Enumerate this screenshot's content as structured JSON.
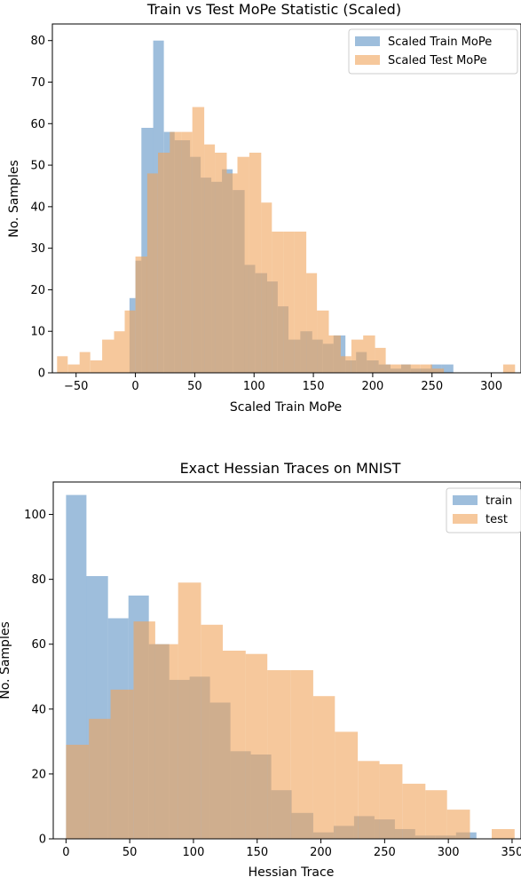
{
  "chart_data": [
    {
      "type": "histogram",
      "title": "Train vs Test MoPe Statistic (Scaled)",
      "xlabel": "Scaled Train MoPe",
      "ylabel": "No. Samples",
      "xlim": [
        -70,
        325
      ],
      "ylim": [
        0,
        84
      ],
      "xticks": [
        -50,
        0,
        50,
        100,
        150,
        200,
        250,
        300
      ],
      "yticks": [
        0,
        10,
        20,
        30,
        40,
        50,
        60,
        70,
        80
      ],
      "xtick_labels": [
        "−50",
        "0",
        "50",
        "100",
        "150",
        "200",
        "250",
        "300"
      ],
      "ytick_labels": [
        "0",
        "10",
        "20",
        "30",
        "40",
        "50",
        "60",
        "70",
        "80"
      ],
      "legend_position": "top-right",
      "series": [
        {
          "name": "Scaled Train MoPe",
          "color": "#4f88c0",
          "opacity": 0.55,
          "bins": [
            [
              -5,
              0,
              18
            ],
            [
              0,
              5,
              27
            ],
            [
              5,
              15,
              59
            ],
            [
              15,
              24,
              80
            ],
            [
              24,
              33,
              58
            ],
            [
              33,
              46,
              56
            ],
            [
              46,
              55,
              52
            ],
            [
              55,
              64,
              47
            ],
            [
              64,
              73,
              46
            ],
            [
              73,
              82,
              49
            ],
            [
              82,
              92,
              44
            ],
            [
              92,
              101,
              26
            ],
            [
              101,
              111,
              24
            ],
            [
              111,
              120,
              22
            ],
            [
              120,
              129,
              16
            ],
            [
              129,
              139,
              8
            ],
            [
              139,
              149,
              10
            ],
            [
              149,
              158,
              8
            ],
            [
              158,
              167,
              7
            ],
            [
              167,
              177,
              9
            ],
            [
              177,
              186,
              3
            ],
            [
              186,
              195,
              5
            ],
            [
              195,
              205,
              3
            ],
            [
              205,
              215,
              2
            ],
            [
              215,
              224,
              1
            ],
            [
              224,
              232,
              2
            ],
            [
              232,
              242,
              1
            ],
            [
              242,
              249,
              1
            ],
            [
              249,
              258,
              2
            ],
            [
              258,
              268,
              2
            ]
          ]
        },
        {
          "name": "Scaled Test MoPe",
          "color": "#f0a35a",
          "opacity": 0.6,
          "bins": [
            [
              -66,
              -57,
              4
            ],
            [
              -57,
              -47,
              2
            ],
            [
              -47,
              -38,
              5
            ],
            [
              -38,
              -28,
              3
            ],
            [
              -28,
              -18,
              8
            ],
            [
              -18,
              -9,
              10
            ],
            [
              -9,
              0,
              15
            ],
            [
              0,
              10,
              28
            ],
            [
              10,
              19,
              48
            ],
            [
              19,
              29,
              53
            ],
            [
              29,
              39,
              58
            ],
            [
              39,
              48,
              58
            ],
            [
              48,
              58,
              64
            ],
            [
              58,
              67,
              55
            ],
            [
              67,
              77,
              53
            ],
            [
              77,
              86,
              48
            ],
            [
              86,
              96,
              52
            ],
            [
              96,
              106,
              53
            ],
            [
              106,
              115,
              41
            ],
            [
              115,
              125,
              34
            ],
            [
              125,
              134,
              34
            ],
            [
              134,
              144,
              34
            ],
            [
              144,
              153,
              24
            ],
            [
              153,
              163,
              15
            ],
            [
              163,
              173,
              9
            ],
            [
              173,
              182,
              4
            ],
            [
              182,
              192,
              8
            ],
            [
              192,
              202,
              9
            ],
            [
              202,
              211,
              6
            ],
            [
              211,
              221,
              2
            ],
            [
              221,
              231,
              2
            ],
            [
              231,
              240,
              2
            ],
            [
              240,
              250,
              2
            ],
            [
              250,
              260,
              1
            ],
            [
              300,
              310,
              0
            ],
            [
              310,
              320,
              2
            ]
          ]
        }
      ]
    },
    {
      "type": "histogram",
      "title": "Exact Hessian Traces on MNIST",
      "xlabel": "Hessian Trace",
      "ylabel": "No. Samples",
      "xlim": [
        -10,
        357
      ],
      "ylim": [
        0,
        110
      ],
      "xticks": [
        0,
        50,
        100,
        150,
        200,
        250,
        300,
        350
      ],
      "yticks": [
        0,
        20,
        40,
        60,
        80,
        100
      ],
      "xtick_labels": [
        "0",
        "50",
        "100",
        "150",
        "200",
        "250",
        "300",
        "350"
      ],
      "ytick_labels": [
        "0",
        "20",
        "40",
        "60",
        "80",
        "100"
      ],
      "legend_position": "top-right",
      "series": [
        {
          "name": "train",
          "color": "#4f88c0",
          "opacity": 0.55,
          "bins": [
            [
              0,
              16,
              106
            ],
            [
              16,
              33,
              81
            ],
            [
              33,
              49,
              68
            ],
            [
              49,
              65,
              75
            ],
            [
              65,
              81,
              60
            ],
            [
              81,
              97,
              49
            ],
            [
              97,
              113,
              50
            ],
            [
              113,
              129,
              42
            ],
            [
              129,
              145,
              27
            ],
            [
              145,
              161,
              26
            ],
            [
              161,
              177,
              15
            ],
            [
              177,
              194,
              8
            ],
            [
              194,
              210,
              2
            ],
            [
              210,
              226,
              4
            ],
            [
              226,
              242,
              7
            ],
            [
              242,
              258,
              6
            ],
            [
              258,
              274,
              3
            ],
            [
              274,
              290,
              1
            ],
            [
              290,
              306,
              1
            ],
            [
              306,
              322,
              2
            ]
          ]
        },
        {
          "name": "test",
          "color": "#f0a35a",
          "opacity": 0.6,
          "bins": [
            [
              0,
              18,
              29
            ],
            [
              18,
              35,
              37
            ],
            [
              35,
              53,
              46
            ],
            [
              53,
              70,
              67
            ],
            [
              70,
              88,
              60
            ],
            [
              88,
              106,
              79
            ],
            [
              106,
              123,
              66
            ],
            [
              123,
              141,
              58
            ],
            [
              141,
              158,
              57
            ],
            [
              158,
              176,
              52
            ],
            [
              176,
              194,
              52
            ],
            [
              194,
              211,
              44
            ],
            [
              211,
              229,
              33
            ],
            [
              229,
              246,
              24
            ],
            [
              246,
              264,
              23
            ],
            [
              264,
              282,
              17
            ],
            [
              282,
              299,
              15
            ],
            [
              299,
              317,
              9
            ],
            [
              317,
              334,
              0
            ],
            [
              334,
              352,
              3
            ]
          ]
        }
      ]
    }
  ]
}
